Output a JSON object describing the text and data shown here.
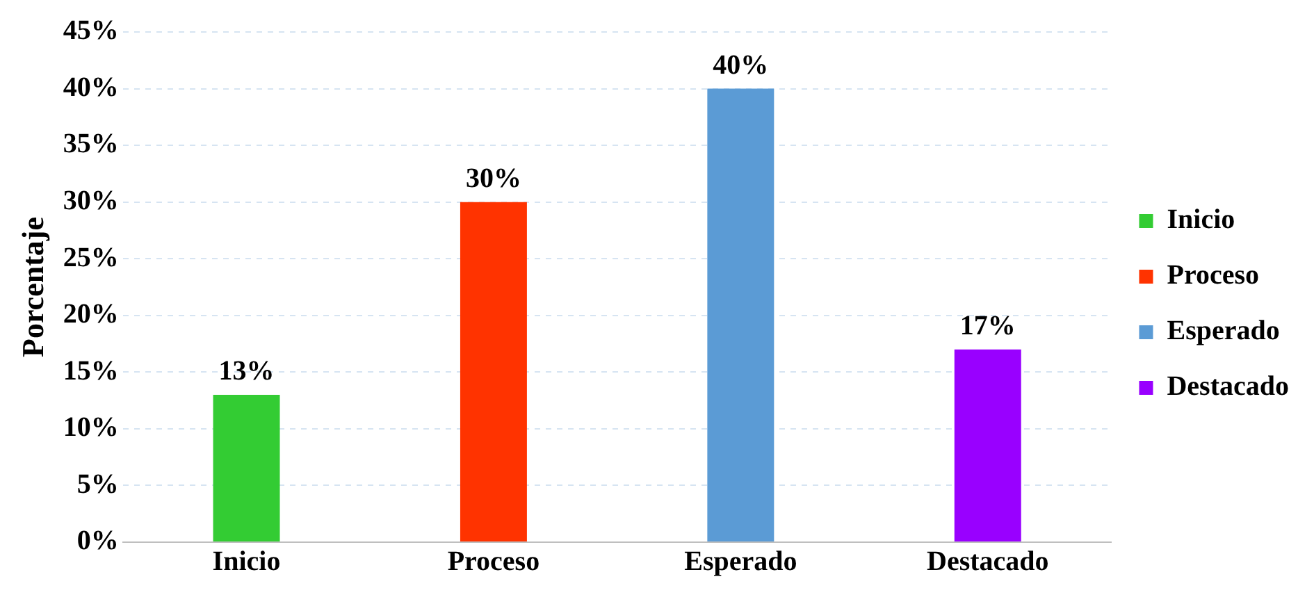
{
  "chart_data": {
    "type": "bar",
    "ylabel": "Porcentaje",
    "categories": [
      "Inicio",
      "Proceso",
      "Esperado",
      "Destacado"
    ],
    "series": [
      {
        "name": "Inicio",
        "color": "#33cc33",
        "values": [
          13,
          null,
          null,
          null
        ],
        "value_labels": [
          "13%",
          null,
          null,
          null
        ]
      },
      {
        "name": "Proceso",
        "color": "#ff3300",
        "values": [
          null,
          30,
          null,
          null
        ],
        "value_labels": [
          null,
          "30%",
          null,
          null
        ]
      },
      {
        "name": "Esperado",
        "color": "#5b9bd5",
        "values": [
          null,
          null,
          40,
          null
        ],
        "value_labels": [
          null,
          null,
          "40%",
          null
        ]
      },
      {
        "name": "Destacado",
        "color": "#9900ff",
        "values": [
          null,
          null,
          null,
          17
        ],
        "value_labels": [
          null,
          null,
          null,
          "17%"
        ]
      }
    ],
    "ylim": [
      0,
      45
    ],
    "yticks": [
      {
        "value": 0,
        "label": "0%"
      },
      {
        "value": 5,
        "label": "5%"
      },
      {
        "value": 10,
        "label": "10%"
      },
      {
        "value": 15,
        "label": "15%"
      },
      {
        "value": 20,
        "label": "20%"
      },
      {
        "value": 25,
        "label": "25%"
      },
      {
        "value": 30,
        "label": "30%"
      },
      {
        "value": 35,
        "label": "35%"
      },
      {
        "value": 40,
        "label": "40%"
      },
      {
        "value": 45,
        "label": "45%"
      }
    ],
    "grid": "y",
    "legend": "right"
  }
}
